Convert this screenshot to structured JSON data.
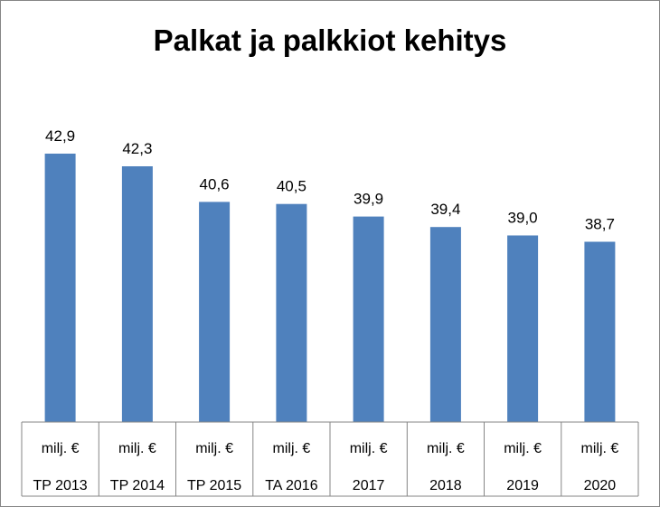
{
  "chart_data": {
    "type": "bar",
    "title": "Palkat ja palkkiot kehitys",
    "categories": [
      "TP 2013",
      "TP 2014",
      "TP 2015",
      "TA 2016",
      "2017",
      "2018",
      "2019",
      "2020"
    ],
    "unit_row": [
      "milj. €",
      "milj. €",
      "milj. €",
      "milj. €",
      "milj. €",
      "milj. €",
      "milj. €",
      "milj. €"
    ],
    "values": [
      42.9,
      42.3,
      40.6,
      40.5,
      39.9,
      39.4,
      39.0,
      38.7
    ],
    "value_labels": [
      "42,9",
      "42,3",
      "40,6",
      "40,5",
      "39,9",
      "39,4",
      "39,0",
      "38,7"
    ],
    "ylim": [
      30.1,
      43.8
    ],
    "bar_color": "#4F81BD",
    "grid": false,
    "legend": "none",
    "xlabel": "",
    "ylabel": ""
  }
}
